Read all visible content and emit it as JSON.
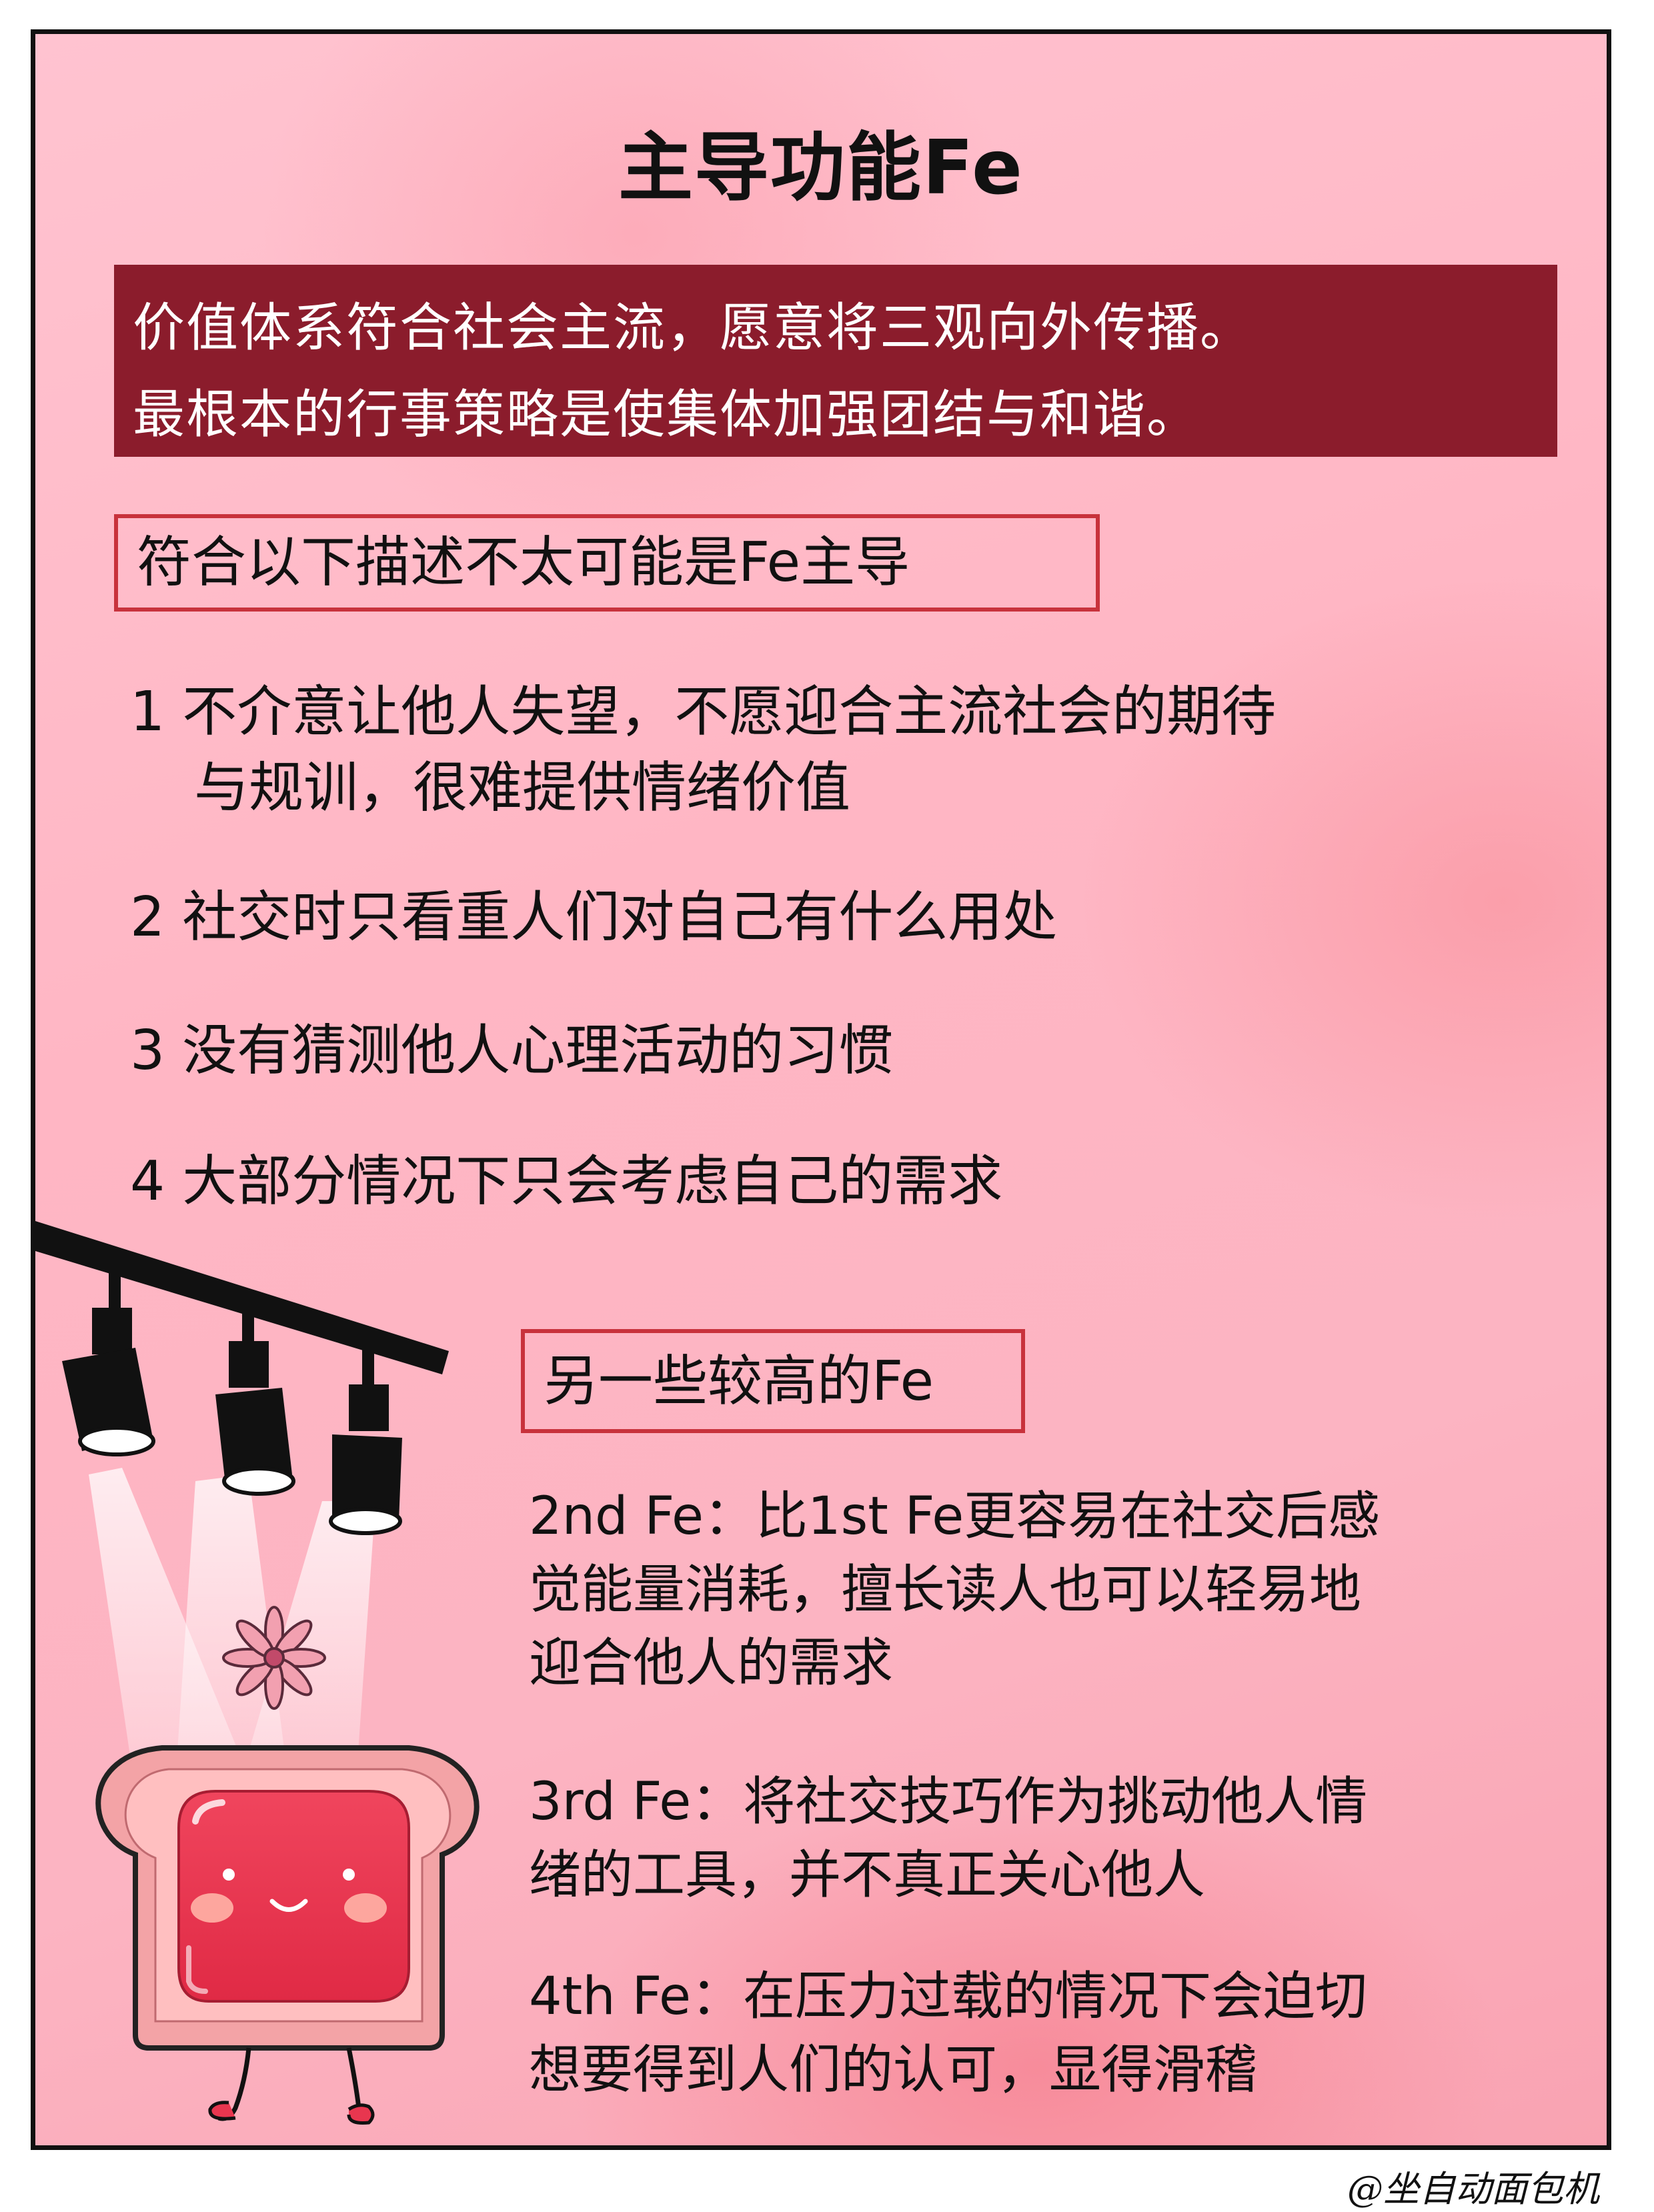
{
  "title": "主导功能Fe",
  "intro": {
    "line1": "价值体系符合社会主流，愿意将三观向外传播。",
    "line2": "最根本的行事策略是使集体加强团结与和谐。"
  },
  "section1": {
    "heading": "符合以下描述不太可能是Fe主导",
    "items": [
      {
        "line1": "1 不介意让他人失望，不愿迎合主流社会的期待",
        "line2": "与规训，很难提供情绪价值"
      },
      {
        "line1": "2 社交时只看重人们对自己有什么用处"
      },
      {
        "line1": "3 没有猜测他人心理活动的习惯"
      },
      {
        "line1": "4 大部分情况下只会考虑自己的需求"
      }
    ]
  },
  "section2": {
    "heading": "另一些较高的Fe",
    "entries": [
      {
        "lines": [
          "2nd Fe：比1st Fe更容易在社交后感",
          "觉能量消耗，擅长读人也可以轻易地",
          "迎合他人的需求"
        ]
      },
      {
        "lines": [
          "3rd Fe：将社交技巧作为挑动他人情",
          "绪的工具，并不真正关心他人"
        ]
      },
      {
        "lines": [
          "4th Fe：在压力过载的情况下会迫切",
          "想要得到人们的认可，显得滑稽"
        ]
      }
    ]
  },
  "signature": "@坐自动面包机",
  "colors": {
    "banner": "#8b1c2c",
    "box_border": "#c8323c",
    "background": "#ffb6c4",
    "jam": "#e8364f"
  }
}
